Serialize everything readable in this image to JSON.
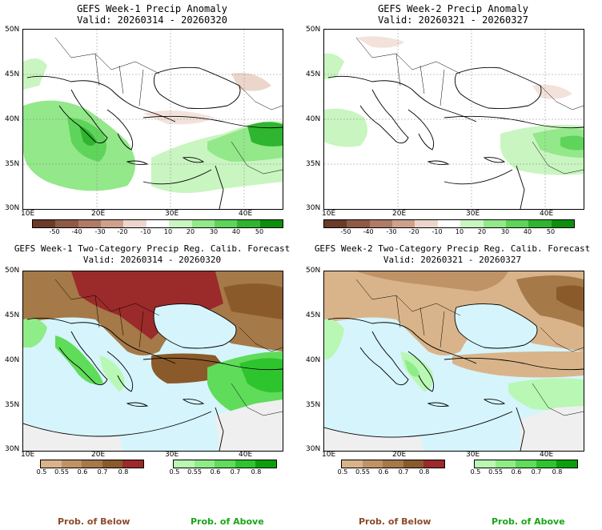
{
  "panels": {
    "w1_anom": {
      "title": "GEFS Week-1 Precip Anomaly",
      "valid": "Valid: 20260314 - 20260320",
      "lat_labels": [
        "50N",
        "45N",
        "40N",
        "35N",
        "30N"
      ],
      "lon_labels": [
        "10E",
        "20E",
        "30E",
        "40E"
      ]
    },
    "w2_anom": {
      "title": "GEFS Week-2 Precip Anomaly",
      "valid": "Valid: 20260321 - 20260327",
      "lat_labels": [
        "50N",
        "45N",
        "40N",
        "35N",
        "30N"
      ],
      "lon_labels": [
        "10E",
        "20E",
        "30E",
        "40E"
      ]
    },
    "w1_prob": {
      "title": "GEFS Week-1 Two-Category Precip Reg. Calib. Forecast",
      "valid": "Valid: 20260314 - 20260320",
      "lat_labels": [
        "50N",
        "45N",
        "40N",
        "35N",
        "30N"
      ],
      "lon_labels": [
        "10E",
        "20E",
        "30E",
        "40E"
      ]
    },
    "w2_prob": {
      "title": "GEFS Week-2 Two-Category Precip Reg. Calib. Forecast",
      "valid": "Valid: 20260321 - 20260327",
      "lat_labels": [
        "50N",
        "45N",
        "40N",
        "35N",
        "30N"
      ],
      "lon_labels": [
        "10E",
        "20E",
        "30E",
        "40E"
      ]
    }
  },
  "anomaly_colorbar": {
    "labels": [
      "-50",
      "-40",
      "-30",
      "-20",
      "-10",
      "10",
      "20",
      "30",
      "40",
      "50"
    ],
    "colors": [
      "#6b3a2a",
      "#8e5a45",
      "#b07a64",
      "#cfa08e",
      "#ecd6cc",
      "#ffffff",
      "#c9f5c0",
      "#93e88a",
      "#5ed45a",
      "#2fb52f",
      "#0e8e0e"
    ]
  },
  "below_colorbar": {
    "labels": [
      "0.5",
      "0.55",
      "0.6",
      "0.7",
      "0.8"
    ],
    "colors": [
      "#d9b48a",
      "#c09366",
      "#a57948",
      "#8b5a2b",
      "#9b2a2a"
    ]
  },
  "above_colorbar": {
    "labels": [
      "0.5",
      "0.55",
      "0.6",
      "0.7",
      "0.8"
    ],
    "colors": [
      "#b9f7b4",
      "#8fed88",
      "#5fdc5a",
      "#2ec42e",
      "#0aa00a"
    ]
  },
  "map_colors": {
    "sea": "#d6f4fb",
    "land_light": "#efefef",
    "coast": "#000000"
  },
  "footer": {
    "below_label": "Prob. of Below",
    "above_label": "Prob. of Above",
    "below_color": "#8b4a2a",
    "above_color": "#1aa51a"
  }
}
